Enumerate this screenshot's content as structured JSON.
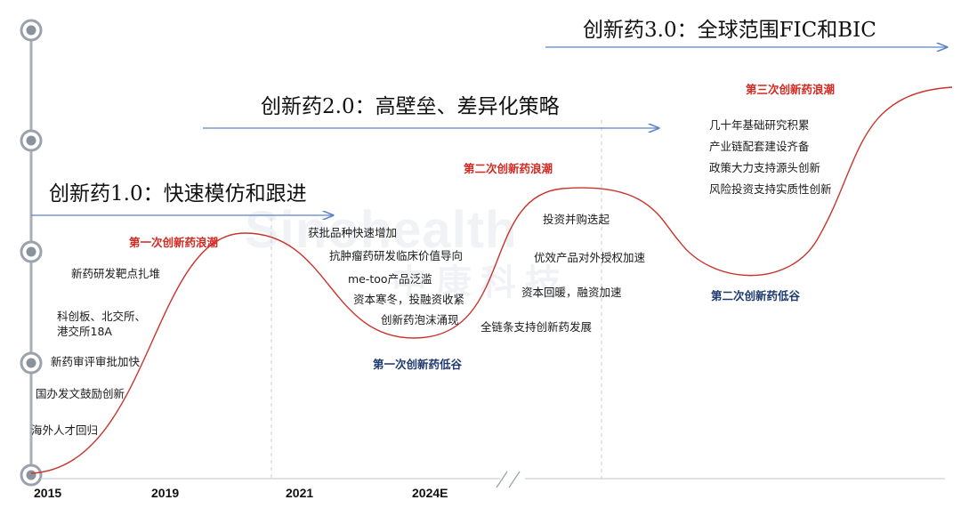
{
  "phases": {
    "p1": "创新药1.0：快速模仿和跟进",
    "p2": "创新药2.0：高壁垒、差异化策略",
    "p3": "创新药3.0：全球范围FIC和BIC"
  },
  "waves": {
    "wave1": "第一次创新药浪潮",
    "wave2": "第二次创新药浪潮",
    "wave3": "第三次创新药浪潮",
    "trough1": "第一次创新药低谷",
    "trough2": "第二次创新药低谷"
  },
  "notes_phase1": [
    "新药研发靶点扎堆",
    "科创板、北交所、",
    "港交所18A",
    "新药审评审批加快",
    "国办发文鼓励创新",
    "海外人才回归"
  ],
  "notes_trough1": [
    "获批品种快速增加",
    "抗肿瘤药研发临床价值导向",
    "me-too产品泛滥",
    "资本寒冬，投融资收紧",
    "创新药泡沫涌现"
  ],
  "notes_wave2": [
    "投资并购迭起",
    "优效产品对外授权加速",
    "资本回暖，融资加速",
    "全链条支持创新药发展"
  ],
  "notes_wave3": [
    "几十年基础研究积累",
    "产业链配套建设齐备",
    "政策大力支持源头创新",
    "风险投资支持实质性创新"
  ],
  "years": [
    "2015",
    "2019",
    "2021",
    "2024E"
  ],
  "watermark": {
    "en": "Sinohealth",
    "cn": "中康科技"
  },
  "colors": {
    "curve": "#c8342c",
    "arrow": "#5b84c4",
    "axis": "#9aa3ad",
    "red_text": "#d22a22",
    "navy_text": "#1f3a6e"
  }
}
